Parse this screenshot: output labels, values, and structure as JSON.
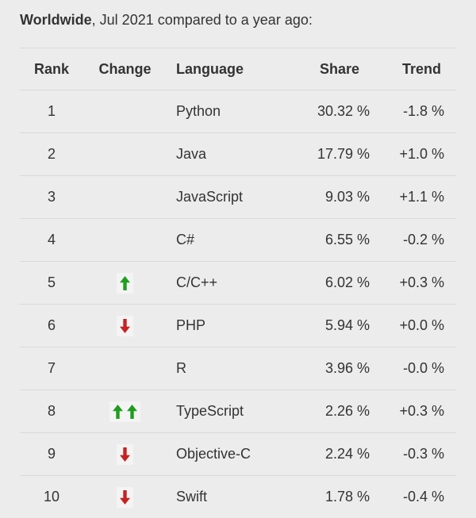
{
  "page": {
    "title_bold": "Worldwide",
    "title_rest": ", Jul 2021 compared to a year ago:"
  },
  "table": {
    "headers": [
      "Rank",
      "Change",
      "Language",
      "Share",
      "Trend"
    ],
    "rows": [
      {
        "rank": "1",
        "change": "",
        "language": "Python",
        "share": "30.32 %",
        "trend": "-1.8 %"
      },
      {
        "rank": "2",
        "change": "",
        "language": "Java",
        "share": "17.79 %",
        "trend": "+1.0 %"
      },
      {
        "rank": "3",
        "change": "",
        "language": "JavaScript",
        "share": "9.03 %",
        "trend": "+1.1 %"
      },
      {
        "rank": "4",
        "change": "",
        "language": "C#",
        "share": "6.55 %",
        "trend": "-0.2 %"
      },
      {
        "rank": "5",
        "change": "up",
        "language": "C/C++",
        "share": "6.02 %",
        "trend": "+0.3 %"
      },
      {
        "rank": "6",
        "change": "down",
        "language": "PHP",
        "share": "5.94 %",
        "trend": "+0.0 %"
      },
      {
        "rank": "7",
        "change": "",
        "language": "R",
        "share": "3.96 %",
        "trend": "-0.0 %"
      },
      {
        "rank": "8",
        "change": "upup",
        "language": "TypeScript",
        "share": "2.26 %",
        "trend": "+0.3 %"
      },
      {
        "rank": "9",
        "change": "down",
        "language": "Objective-C",
        "share": "2.24 %",
        "trend": "-0.3 %"
      },
      {
        "rank": "10",
        "change": "down",
        "language": "Swift",
        "share": "1.78 %",
        "trend": "-0.4 %"
      }
    ]
  },
  "colors": {
    "background": "#ececec",
    "text": "#333333",
    "divider": "#d9d9d9",
    "up_arrow": "#1e9e1e",
    "down_arrow": "#c62222",
    "arrow_background": "#f4f4f4"
  },
  "chart_data": {
    "type": "table",
    "title": "Worldwide, Jul 2021 compared to a year ago:",
    "columns": [
      "Rank",
      "Change",
      "Language",
      "Share",
      "Trend"
    ],
    "rows": [
      {
        "rank": 1,
        "change": "",
        "language": "Python",
        "share_pct": 30.32,
        "trend_pct": -1.8
      },
      {
        "rank": 2,
        "change": "",
        "language": "Java",
        "share_pct": 17.79,
        "trend_pct": 1.0
      },
      {
        "rank": 3,
        "change": "",
        "language": "JavaScript",
        "share_pct": 9.03,
        "trend_pct": 1.1
      },
      {
        "rank": 4,
        "change": "",
        "language": "C#",
        "share_pct": 6.55,
        "trend_pct": -0.2
      },
      {
        "rank": 5,
        "change": "up",
        "language": "C/C++",
        "share_pct": 6.02,
        "trend_pct": 0.3
      },
      {
        "rank": 6,
        "change": "down",
        "language": "PHP",
        "share_pct": 5.94,
        "trend_pct": 0.0
      },
      {
        "rank": 7,
        "change": "",
        "language": "R",
        "share_pct": 3.96,
        "trend_pct": -0.0
      },
      {
        "rank": 8,
        "change": "up-double",
        "language": "TypeScript",
        "share_pct": 2.26,
        "trend_pct": 0.3
      },
      {
        "rank": 9,
        "change": "down",
        "language": "Objective-C",
        "share_pct": 2.24,
        "trend_pct": -0.3
      },
      {
        "rank": 10,
        "change": "down",
        "language": "Swift",
        "share_pct": 1.78,
        "trend_pct": -0.4
      }
    ]
  }
}
